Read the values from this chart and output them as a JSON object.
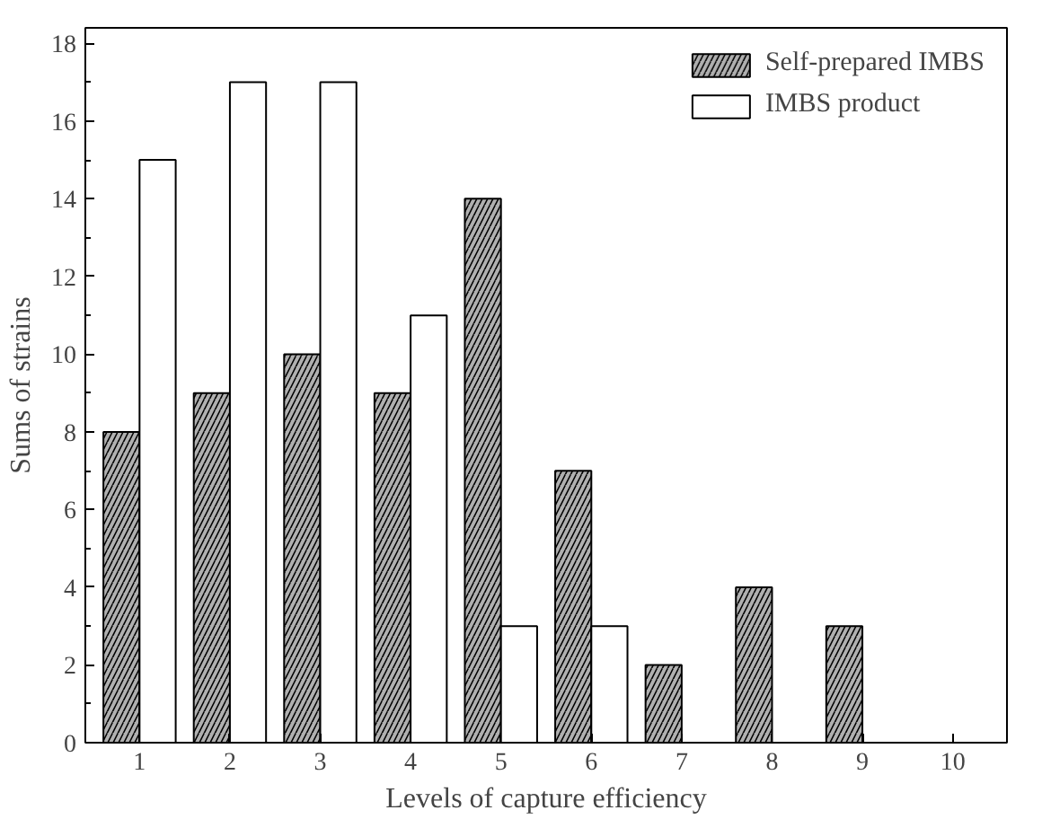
{
  "chart_data": {
    "type": "bar",
    "xlabel": "Levels of capture efficiency",
    "ylabel": "Sums of strains",
    "categories": [
      "1",
      "2",
      "3",
      "4",
      "5",
      "6",
      "7",
      "8",
      "9",
      "10"
    ],
    "series": [
      {
        "name": "Self-prepared IMBS",
        "color": "#b0b0b0",
        "values": [
          8,
          9,
          10,
          9,
          14,
          7,
          2,
          4,
          3,
          null
        ]
      },
      {
        "name": "IMBS product",
        "color": "#ffffff",
        "values": [
          15,
          17,
          17,
          11,
          3,
          3,
          null,
          null,
          null,
          null
        ]
      }
    ],
    "ylim": [
      0,
      18.4
    ],
    "yticks": [
      0,
      2,
      4,
      6,
      8,
      10,
      12,
      14,
      16,
      18
    ],
    "grid": false,
    "legend": "top right"
  }
}
